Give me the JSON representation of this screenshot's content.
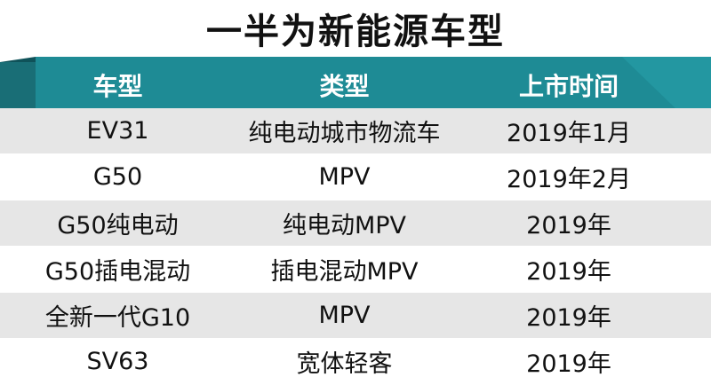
{
  "title": "一半为新能源车型",
  "colors": {
    "header_teal": "#1e8b95",
    "header_dark": "#196e76",
    "row_alt": "#e6e6e6"
  },
  "header": [
    "车型",
    "类型",
    "上市时间"
  ],
  "rows": [
    [
      "EV31",
      "纯电动城市物流车",
      "2019年1月"
    ],
    [
      "G50",
      "MPV",
      "2019年2月"
    ],
    [
      "G50纯电动",
      "纯电动MPV",
      "2019年"
    ],
    [
      "G50插电混动",
      "插电混动MPV",
      "2019年"
    ],
    [
      "全新一代G10",
      "MPV",
      "2019年"
    ],
    [
      "SV63",
      "宽体轻客",
      "2019年"
    ]
  ]
}
